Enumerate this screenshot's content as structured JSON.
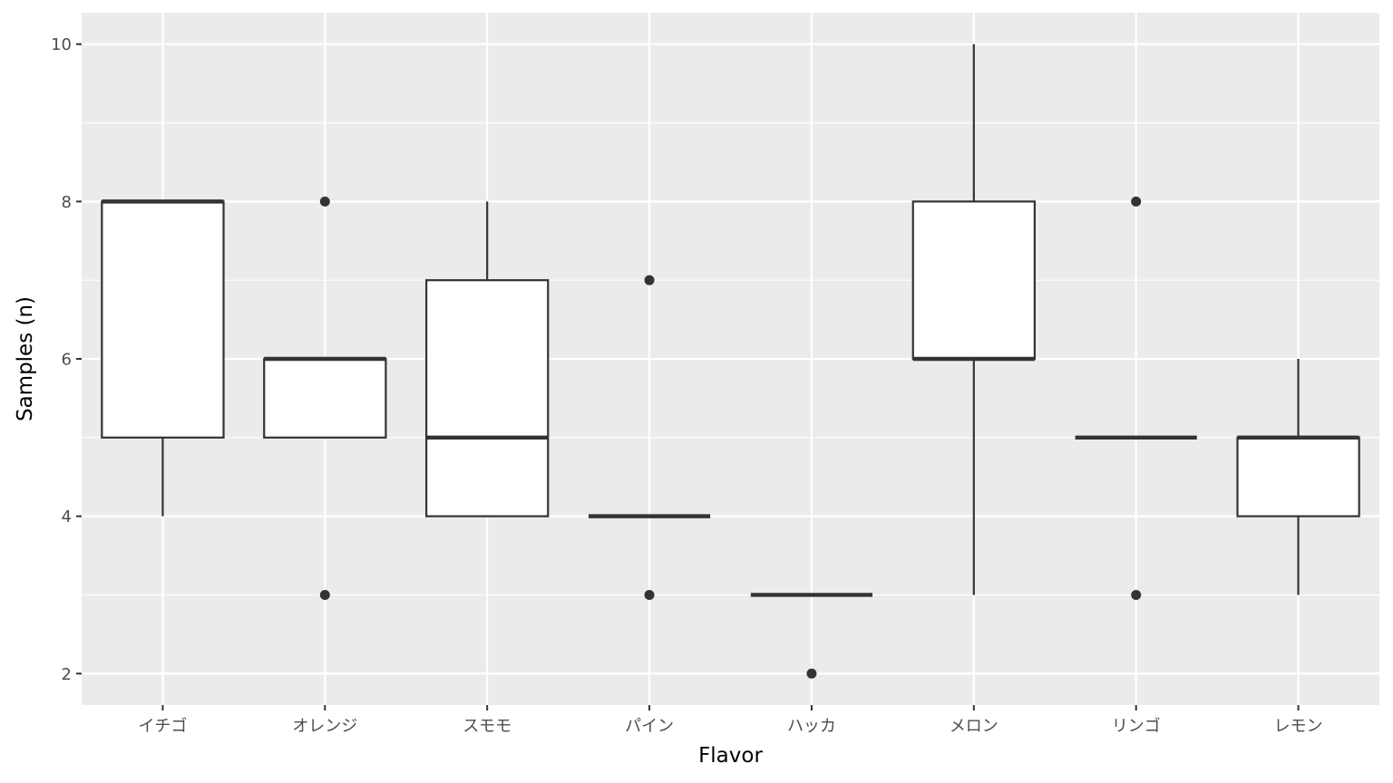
{
  "chart_data": {
    "type": "boxplot",
    "title": "",
    "xlabel": "Flavor",
    "ylabel": "Samples (n)",
    "ylim": [
      1.6,
      10.4
    ],
    "yticks": [
      2,
      4,
      6,
      8,
      10
    ],
    "grid": true,
    "legend": "none",
    "colors": {
      "panel": "#ebebeb",
      "grid": "#ffffff",
      "box_fill": "#ffffff",
      "box_line": "#333333",
      "tick_text": "#4d4d4d"
    },
    "categories": [
      "イチゴ",
      "オレンジ",
      "スモモ",
      "パイン",
      "ハッカ",
      "メロン",
      "リンゴ",
      "レモン"
    ],
    "boxes": [
      {
        "category": "イチゴ",
        "lower_whisker": 4,
        "q1": 5,
        "median": 8,
        "q3": 8,
        "upper_whisker": 8,
        "outliers": []
      },
      {
        "category": "オレンジ",
        "lower_whisker": 5,
        "q1": 5,
        "median": 6,
        "q3": 6,
        "upper_whisker": 6,
        "outliers": [
          8,
          3
        ]
      },
      {
        "category": "スモモ",
        "lower_whisker": 4,
        "q1": 4,
        "median": 5,
        "q3": 7,
        "upper_whisker": 8,
        "outliers": []
      },
      {
        "category": "パイン",
        "lower_whisker": 4,
        "q1": 4,
        "median": 4,
        "q3": 4,
        "upper_whisker": 4,
        "outliers": [
          7,
          3
        ]
      },
      {
        "category": "ハッカ",
        "lower_whisker": 3,
        "q1": 3,
        "median": 3,
        "q3": 3,
        "upper_whisker": 3,
        "outliers": [
          2
        ]
      },
      {
        "category": "メロン",
        "lower_whisker": 3,
        "q1": 6,
        "median": 6,
        "q3": 8,
        "upper_whisker": 10,
        "outliers": []
      },
      {
        "category": "リンゴ",
        "lower_whisker": 5,
        "q1": 5,
        "median": 5,
        "q3": 5,
        "upper_whisker": 5,
        "outliers": [
          8,
          3
        ]
      },
      {
        "category": "レモン",
        "lower_whisker": 3,
        "q1": 4,
        "median": 5,
        "q3": 5,
        "upper_whisker": 6,
        "outliers": []
      }
    ]
  }
}
